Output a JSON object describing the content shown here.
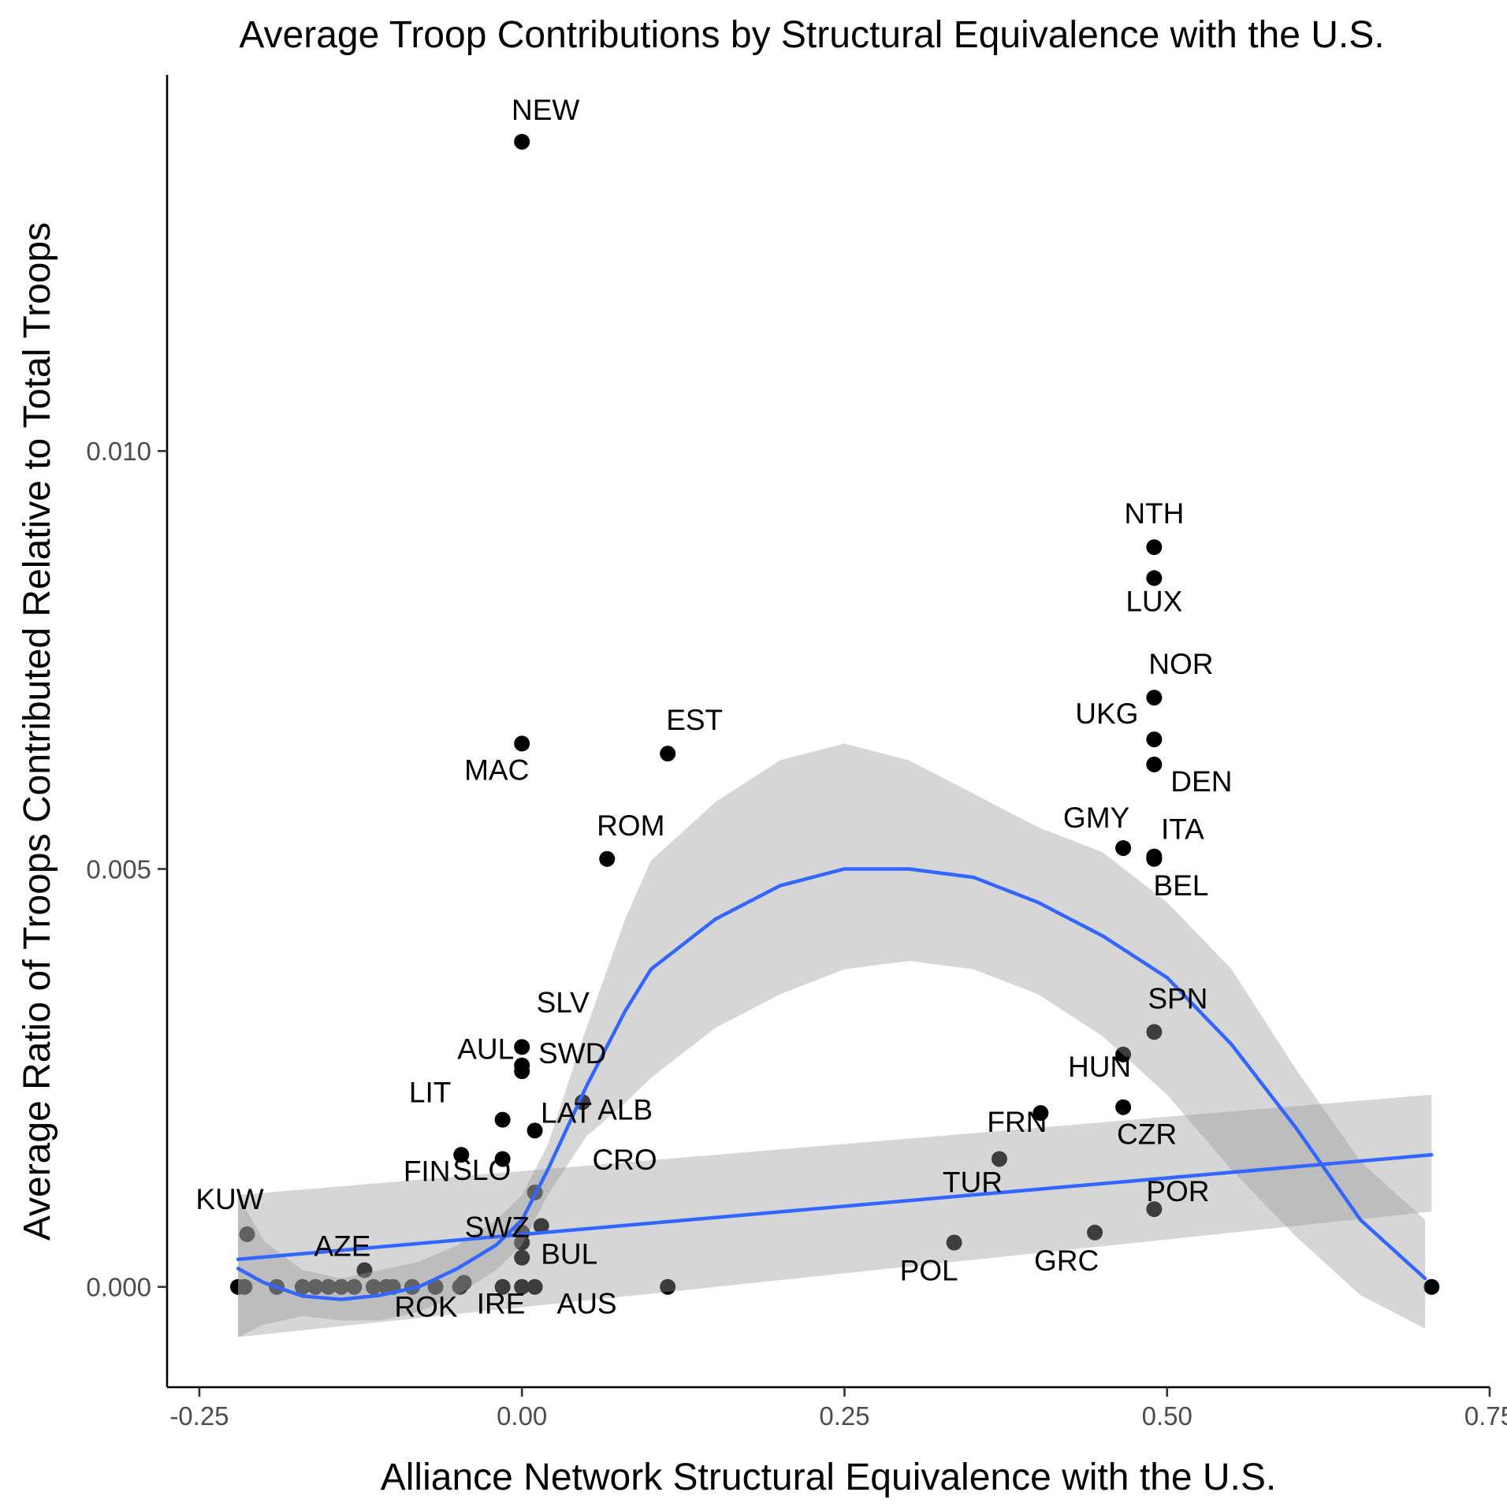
{
  "chart_data": {
    "type": "scatter",
    "title": "Average Troop Contributions by Structural Equivalence with the U.S.",
    "xlabel": "Alliance Network Structural Equivalence with the U.S.",
    "ylabel": "Average Ratio of Troops Contributed Relative to Total Troops",
    "xlim": [
      -0.275,
      0.75
    ],
    "ylim": [
      -0.0012,
      0.0145
    ],
    "x_ticks": [
      -0.25,
      0.0,
      0.25,
      0.5,
      0.75
    ],
    "x_tick_labels": [
      "-0.25",
      "0.00",
      "0.25",
      "0.50",
      "0.75"
    ],
    "y_ticks": [
      0.0,
      0.005,
      0.01
    ],
    "y_tick_labels": [
      "0.000",
      "0.005",
      "0.010"
    ],
    "grid": false,
    "colors": {
      "points": "#000000",
      "smooth_line": "#3366ff",
      "ribbon": "#999999",
      "axis": "#000000",
      "tick_text": "#4d4d4d"
    },
    "points": [
      {
        "label": "NEW",
        "x": 0.0,
        "y": 0.0137
      },
      {
        "label": "NTH",
        "x": 0.49,
        "y": 0.00885
      },
      {
        "label": "LUX",
        "x": 0.49,
        "y": 0.00848
      },
      {
        "label": "NOR",
        "x": 0.49,
        "y": 0.00705
      },
      {
        "label": "UKG",
        "x": 0.49,
        "y": 0.00655
      },
      {
        "label": "DEN",
        "x": 0.49,
        "y": 0.00625
      },
      {
        "label": "EST",
        "x": 0.113,
        "y": 0.00638
      },
      {
        "label": "MAC",
        "x": 0.0,
        "y": 0.0065
      },
      {
        "label": "ROM",
        "x": 0.066,
        "y": 0.00512
      },
      {
        "label": "GMY",
        "x": 0.466,
        "y": 0.00525
      },
      {
        "label": "ITA",
        "x": 0.49,
        "y": 0.00515
      },
      {
        "label": "BEL",
        "x": 0.49,
        "y": 0.00512
      },
      {
        "label": "SPN",
        "x": 0.49,
        "y": 0.00305
      },
      {
        "label": "SLV",
        "x": 0.0,
        "y": 0.00287
      },
      {
        "label": "AUL",
        "x": 0.0,
        "y": 0.00265
      },
      {
        "label": "SWD",
        "x": 0.0,
        "y": 0.00258
      },
      {
        "label": "HUN",
        "x": 0.466,
        "y": 0.00278
      },
      {
        "label": "CZR",
        "x": 0.466,
        "y": 0.00215
      },
      {
        "label": "ALB",
        "x": 0.047,
        "y": 0.00221
      },
      {
        "label": "LIT",
        "x": -0.015,
        "y": 0.002
      },
      {
        "label": "FRN",
        "x": 0.402,
        "y": 0.00208
      },
      {
        "label": "LAT",
        "x": 0.01,
        "y": 0.00187
      },
      {
        "label": "SLO",
        "x": -0.047,
        "y": 0.00158
      },
      {
        "label": "FIN",
        "x": -0.015,
        "y": 0.00153
      },
      {
        "label": "TUR",
        "x": 0.37,
        "y": 0.00153
      },
      {
        "label": "CRO",
        "x": 0.01,
        "y": 0.00113
      },
      {
        "label": "POR",
        "x": 0.49,
        "y": 0.00093
      },
      {
        "label": "KUW",
        "x": -0.213,
        "y": 0.00063
      },
      {
        "label": "SWZ",
        "x": 0.015,
        "y": 0.00073
      },
      {
        "label": "GRC",
        "x": 0.444,
        "y": 0.00065
      },
      {
        "label": "AZE",
        "x": -0.122,
        "y": 0.0002
      },
      {
        "label": "POL",
        "x": 0.335,
        "y": 0.00053
      },
      {
        "label": "BUL",
        "x": 0.0,
        "y": 0.00035
      },
      {
        "label": "ROK",
        "x": -0.1,
        "y": 0.0
      },
      {
        "label": "IRE",
        "x": -0.015,
        "y": 0.0
      },
      {
        "label": "AUS",
        "x": 0.01,
        "y": 0.0
      },
      {
        "label": "",
        "x": 0.0,
        "y": 0.00053
      },
      {
        "label": "",
        "x": 0.0,
        "y": 0.00065
      },
      {
        "label": "",
        "x": -0.22,
        "y": 0.0
      },
      {
        "label": "",
        "x": -0.215,
        "y": 0.0
      },
      {
        "label": "",
        "x": -0.19,
        "y": 0.0
      },
      {
        "label": "",
        "x": -0.17,
        "y": 0.0
      },
      {
        "label": "",
        "x": -0.16,
        "y": 0.0
      },
      {
        "label": "",
        "x": -0.15,
        "y": 0.0
      },
      {
        "label": "",
        "x": -0.14,
        "y": 0.0
      },
      {
        "label": "",
        "x": -0.13,
        "y": 0.0
      },
      {
        "label": "",
        "x": -0.115,
        "y": 0.0
      },
      {
        "label": "",
        "x": -0.105,
        "y": 0.0
      },
      {
        "label": "",
        "x": -0.085,
        "y": 0.0
      },
      {
        "label": "",
        "x": -0.067,
        "y": 0.0
      },
      {
        "label": "",
        "x": -0.048,
        "y": 0.0
      },
      {
        "label": "",
        "x": -0.045,
        "y": 5e-05
      },
      {
        "label": "",
        "x": 0.0,
        "y": 0.0
      },
      {
        "label": "",
        "x": 0.113,
        "y": 0.0
      },
      {
        "label": "",
        "x": 0.705,
        "y": 0.0
      }
    ],
    "series": [
      {
        "type": "smooth",
        "x": [
          -0.22,
          -0.2,
          -0.17,
          -0.14,
          -0.11,
          -0.08,
          -0.05,
          -0.02,
          0.0,
          0.02,
          0.05,
          0.08,
          0.1,
          0.15,
          0.2,
          0.25,
          0.3,
          0.35,
          0.4,
          0.45,
          0.5,
          0.55,
          0.6,
          0.65,
          0.7
        ],
        "y": [
          0.00022,
          5e-05,
          -0.00011,
          -0.00015,
          -0.0001,
          0.0,
          0.00022,
          0.0005,
          0.0008,
          0.0014,
          0.0024,
          0.0033,
          0.0038,
          0.0044,
          0.0048,
          0.005,
          0.005,
          0.0049,
          0.0046,
          0.0042,
          0.0037,
          0.0029,
          0.0019,
          0.0008,
          0.0001
        ],
        "lower": [
          -0.0006,
          -0.00045,
          -0.00035,
          -0.0004,
          -0.0004,
          -0.0003,
          -0.0001,
          0.0002,
          0.0005,
          0.0011,
          0.0018,
          0.0022,
          0.0025,
          0.0031,
          0.0035,
          0.0038,
          0.0039,
          0.0038,
          0.0035,
          0.003,
          0.0023,
          0.0014,
          0.0006,
          -0.0001,
          -0.0005
        ],
        "upper": [
          0.0011,
          0.00055,
          0.0002,
          0.0001,
          0.0002,
          0.0003,
          0.0005,
          0.0008,
          0.0011,
          0.0017,
          0.0031,
          0.0044,
          0.0051,
          0.0058,
          0.0063,
          0.0065,
          0.0063,
          0.0059,
          0.0055,
          0.0052,
          0.0046,
          0.0038,
          0.0026,
          0.0015,
          0.0008
        ]
      },
      {
        "type": "linear",
        "x": [
          -0.22,
          0.705
        ],
        "y": [
          0.00033,
          0.00158
        ],
        "lower": [
          -0.0006,
          0.0009
        ],
        "upper": [
          0.0011,
          0.0023
        ]
      }
    ]
  }
}
